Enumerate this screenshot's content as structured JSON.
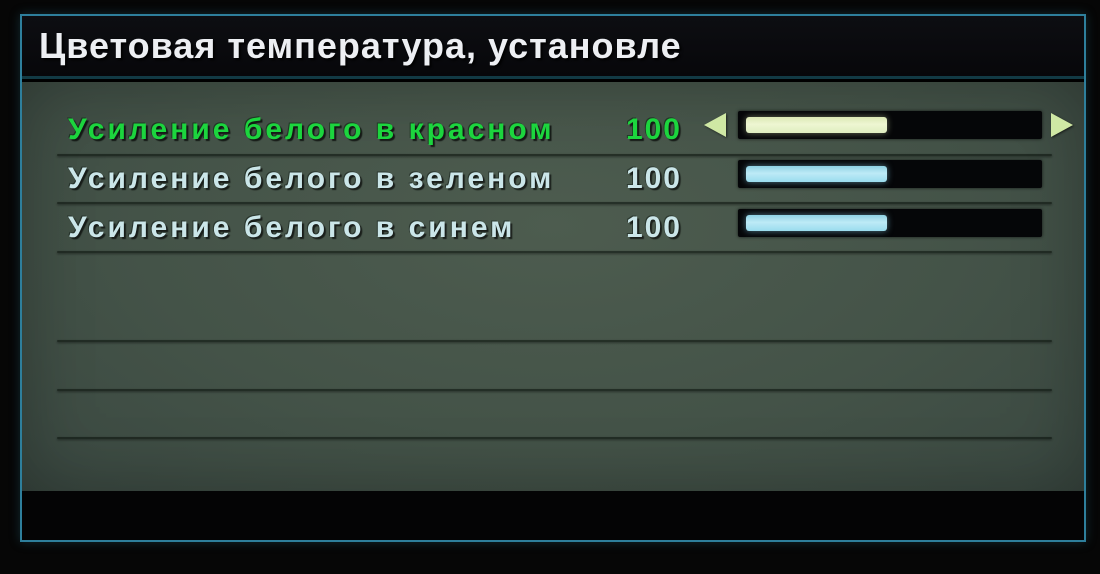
{
  "header": {
    "title": "Цветовая температура, установле"
  },
  "rows": [
    {
      "label": "Усиление белого в красном",
      "value": "100",
      "fill_percent": 49,
      "selected": true
    },
    {
      "label": "Усиление белого в зеленом",
      "value": "100",
      "fill_percent": 49,
      "selected": false
    },
    {
      "label": "Усиление белого в синем",
      "value": "100",
      "fill_percent": 49,
      "selected": false
    }
  ],
  "icons": {
    "decrement": "left-arrow",
    "increment": "right-arrow"
  },
  "colors": {
    "border_teal": "#2e7f9c",
    "panel_green": "#445348",
    "selected_text_green": "#1cd53e",
    "inactive_text": "#cbe6e9",
    "slider_fill_selected": "#eef6d2",
    "slider_fill_inactive": "#bdeaf6",
    "arrow": "#cfe8a4",
    "title_text": "#edeff3"
  }
}
